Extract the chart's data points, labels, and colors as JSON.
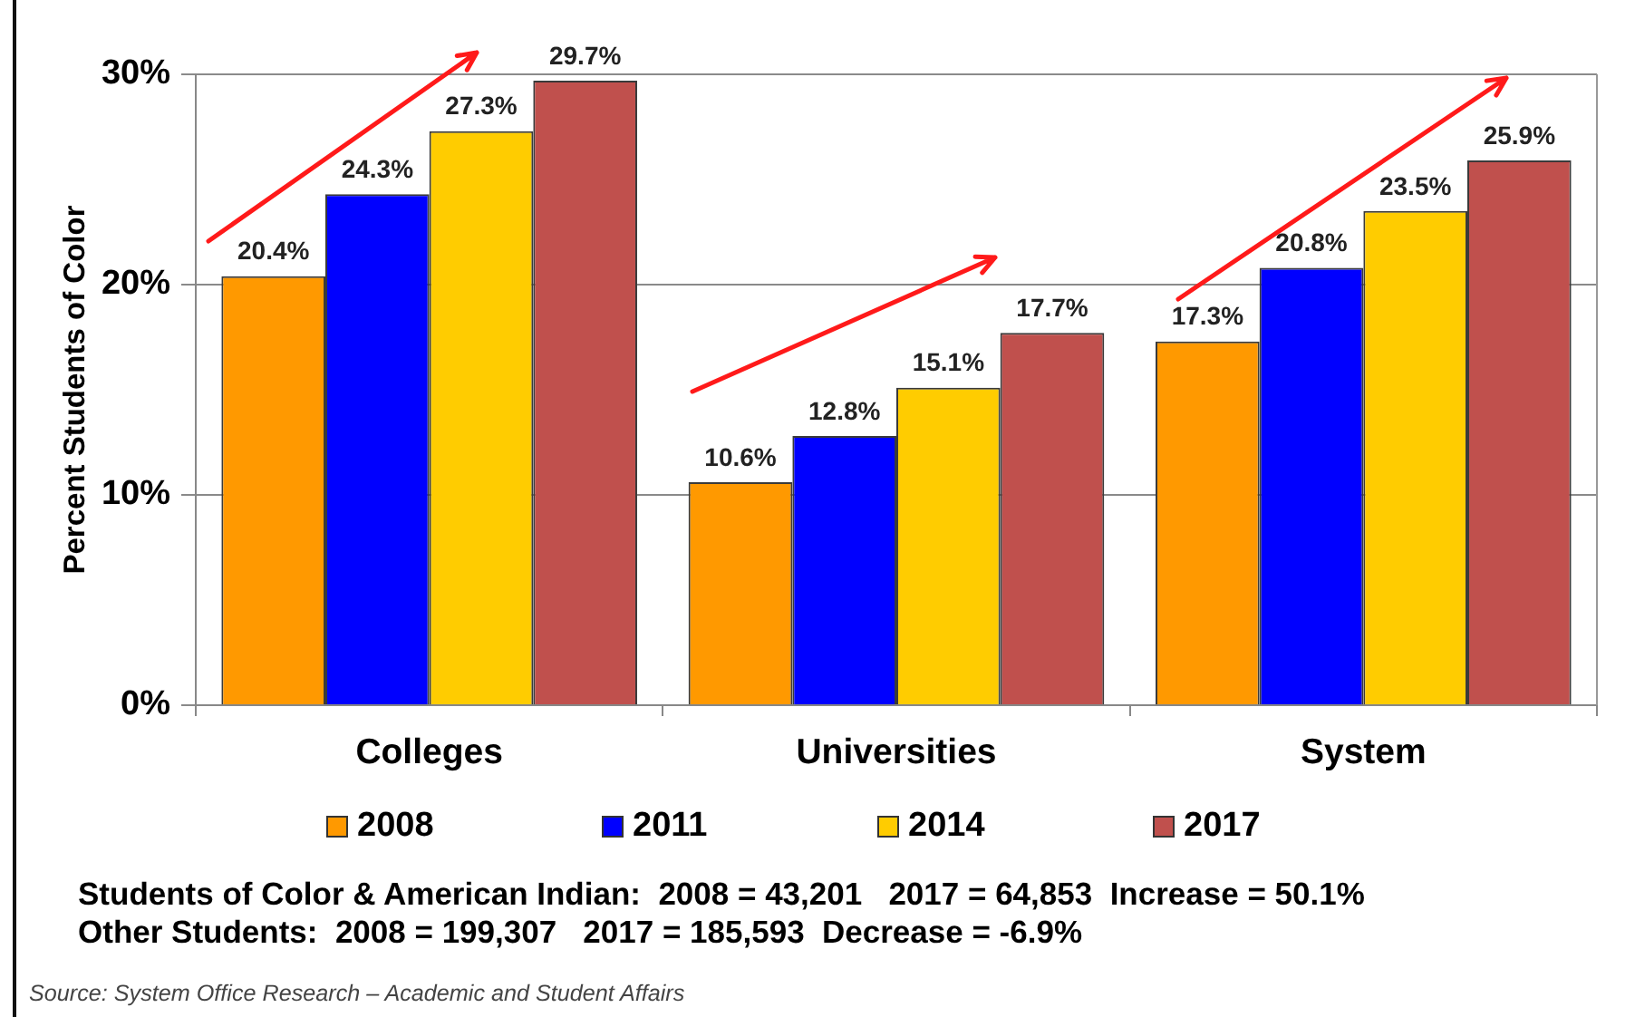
{
  "chart_data": {
    "type": "bar",
    "categories": [
      "Colleges",
      "Universities",
      "System"
    ],
    "ylabel": "Percent Students of Color",
    "series": [
      {
        "name": "2008",
        "color": "#ff9900",
        "values": [
          20.4,
          10.6,
          17.3
        ],
        "value_labels": [
          "20.4%",
          "10.6%",
          "17.3%"
        ]
      },
      {
        "name": "2011",
        "color": "#0000ff",
        "values": [
          24.3,
          12.8,
          20.8
        ],
        "value_labels": [
          "24.3%",
          "12.8%",
          "20.8%"
        ]
      },
      {
        "name": "2014",
        "color": "#ffcc00",
        "values": [
          27.3,
          15.1,
          23.5
        ],
        "value_labels": [
          "27.3%",
          "15.1%",
          "23.5%"
        ]
      },
      {
        "name": "2017",
        "color": "#c0504d",
        "values": [
          29.7,
          17.7,
          25.9
        ],
        "value_labels": [
          "29.7%",
          "17.7%",
          "25.9%"
        ]
      }
    ],
    "ylim": [
      0,
      30
    ],
    "yticks": [
      {
        "value": 0,
        "label": "0%"
      },
      {
        "value": 10,
        "label": "10%"
      },
      {
        "value": 20,
        "label": "20%"
      },
      {
        "value": 30,
        "label": "30%"
      }
    ],
    "grid": "y",
    "legend": "bottom",
    "annotations": [
      "Students of Color & American Indian:  2008 = 43,201   2017 = 64,853  Increase = 50.1%",
      "Other Students:  2008 = 199,307   2017 = 185,593  Decrease = -6.9%",
      "Source: System Office Research – Academic and Student Affairs"
    ]
  }
}
